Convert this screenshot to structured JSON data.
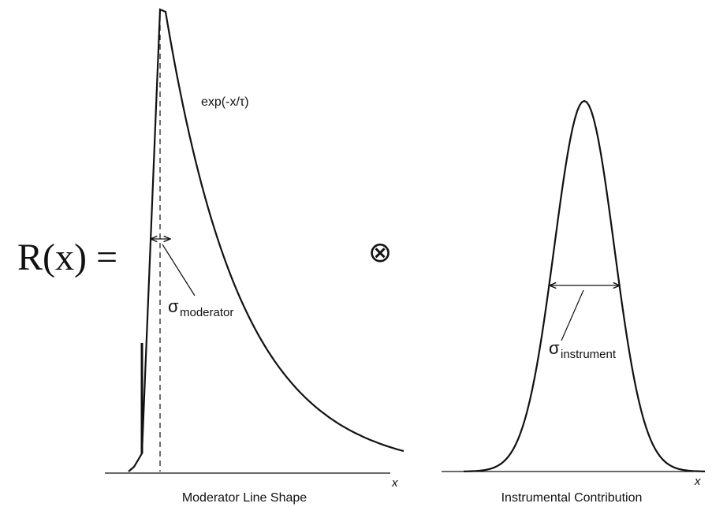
{
  "equation": {
    "lhs": "R(x) =",
    "operator": "⊗"
  },
  "moderator": {
    "formula": "exp(-x/τ)",
    "sigma": {
      "symbol": "σ",
      "subscript": "moderator"
    },
    "axis_label": "x",
    "caption": "Moderator Line Shape"
  },
  "instrument": {
    "sigma": {
      "symbol": "σ",
      "subscript": "instrument"
    },
    "axis_label": "x",
    "caption": "Instrumental Contribution"
  }
}
